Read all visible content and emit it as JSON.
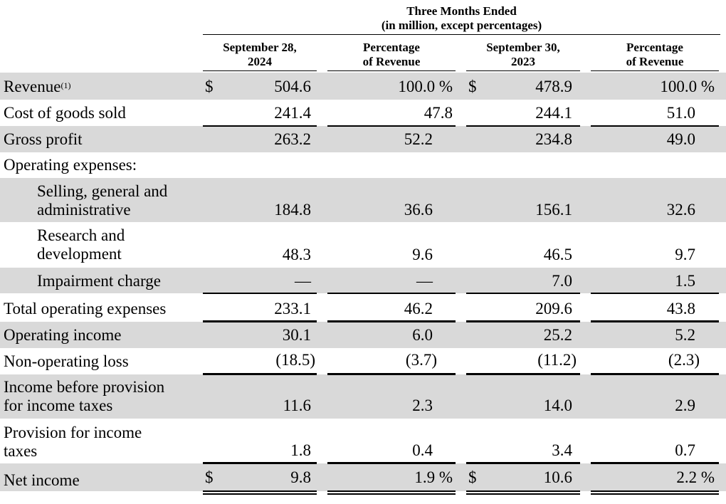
{
  "header": {
    "period_line1": "Three Months Ended",
    "period_line2": "(in million, except percentages)",
    "columns": [
      {
        "line1": "September 28,",
        "line2": "2024"
      },
      {
        "line1": "Percentage",
        "line2": "of Revenue"
      },
      {
        "line1": "September 30,",
        "line2": "2023"
      },
      {
        "line1": "Percentage",
        "line2": "of Revenue"
      }
    ]
  },
  "currency_symbol": "$",
  "rows": [
    {
      "label": "Revenue",
      "footnote": "(1)",
      "values": [
        "504.6",
        "100.0 %",
        "478.9",
        "100.0 %"
      ]
    },
    {
      "label": "Cost of goods sold",
      "values": [
        "241.4",
        "47.8",
        "244.1",
        "51.0"
      ]
    },
    {
      "label": "Gross profit",
      "values": [
        "263.2",
        "52.2",
        "234.8",
        "49.0"
      ]
    },
    {
      "label": "Operating expenses:",
      "values": [
        "",
        "",
        "",
        ""
      ]
    },
    {
      "label_line1": "Selling, general and",
      "label_line2": "administrative",
      "values": [
        "184.8",
        "36.6",
        "156.1",
        "32.6"
      ]
    },
    {
      "label_line1": "Research and",
      "label_line2": "development",
      "values": [
        "48.3",
        "9.6",
        "46.5",
        "9.7"
      ]
    },
    {
      "label": "Impairment charge",
      "values": [
        "—",
        "—",
        "7.0",
        "1.5"
      ]
    },
    {
      "label": "Total operating expenses",
      "values": [
        "233.1",
        "46.2",
        "209.6",
        "43.8"
      ]
    },
    {
      "label": "Operating income",
      "values": [
        "30.1",
        "6.0",
        "25.2",
        "5.2"
      ]
    },
    {
      "label": "Non-operating loss",
      "values": [
        "(18.5)",
        "(3.7)",
        "(11.2)",
        "(2.3)"
      ]
    },
    {
      "label_line1": "Income before provision",
      "label_line2": "for income taxes",
      "values": [
        "11.6",
        "2.3",
        "14.0",
        "2.9"
      ]
    },
    {
      "label_line1": "Provision for income",
      "label_line2": "taxes",
      "values": [
        "1.8",
        "0.4",
        "3.4",
        "0.7"
      ]
    },
    {
      "label": "Net income",
      "values": [
        "9.8",
        "1.9 %",
        "10.6",
        "2.2 %"
      ]
    }
  ]
}
